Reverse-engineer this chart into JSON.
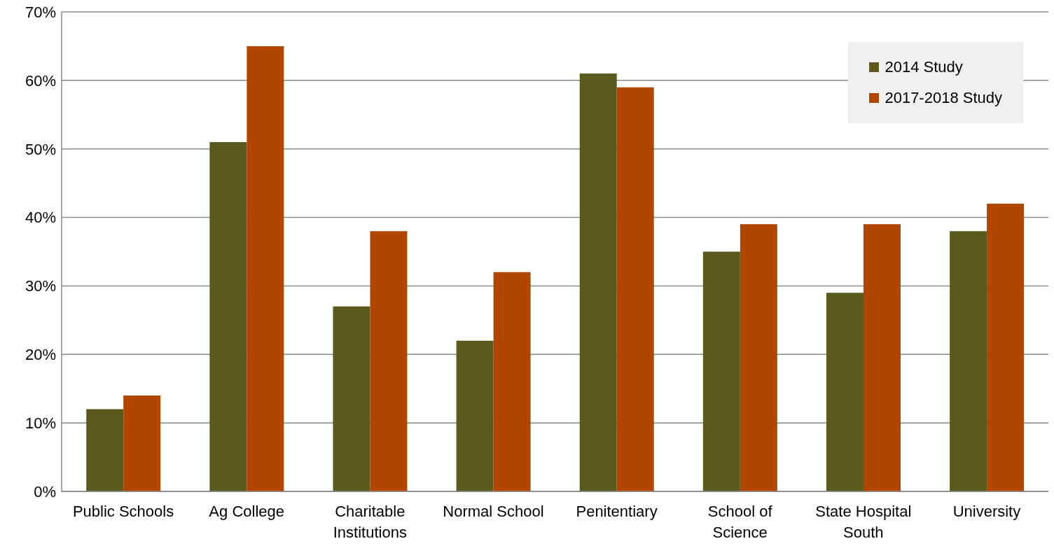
{
  "chart_data": {
    "type": "bar",
    "categories": [
      "Public Schools",
      "Ag College",
      "Charitable Institutions",
      "Normal School",
      "Penitentiary",
      "School of Science",
      "State Hospital South",
      "University"
    ],
    "series": [
      {
        "name": "2014 Study",
        "color": "#5a5a1f",
        "values": [
          12,
          51,
          27,
          22,
          61,
          35,
          29,
          38
        ]
      },
      {
        "name": "2017-2018 Study",
        "color": "#b04600",
        "values": [
          14,
          65,
          38,
          32,
          59,
          39,
          39,
          42
        ]
      }
    ],
    "ylim": [
      0,
      70
    ],
    "yticks": [
      {
        "value": 0,
        "label": "0%"
      },
      {
        "value": 10,
        "label": "10%"
      },
      {
        "value": 20,
        "label": "20%"
      },
      {
        "value": 30,
        "label": "30%"
      },
      {
        "value": 40,
        "label": "40%"
      },
      {
        "value": 50,
        "label": "50%"
      },
      {
        "value": 60,
        "label": "60%"
      },
      {
        "value": 70,
        "label": "70%"
      }
    ],
    "grid": "y",
    "legend": "top right"
  }
}
